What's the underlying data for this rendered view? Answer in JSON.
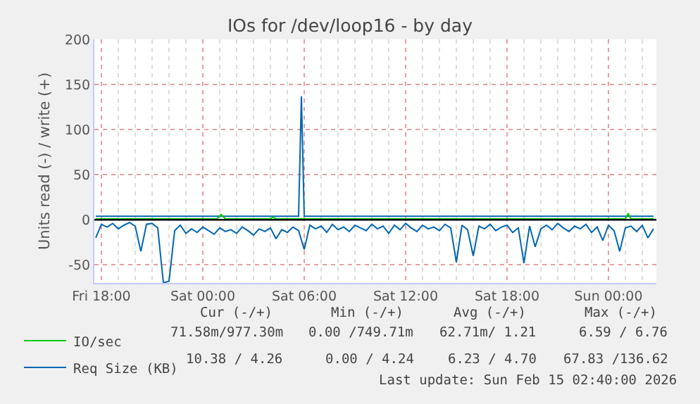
{
  "chart_data": {
    "type": "line",
    "title": "IOs for /dev/loop16 - by day",
    "ylabel": "Units read (-) / write (+)",
    "xlim": [
      "2026-02-13T17:35",
      "2026-02-15T02:50"
    ],
    "xticks": [
      {
        "value": "2026-02-13T18:00",
        "label": "Fri 18:00"
      },
      {
        "value": "2026-02-14T00:00",
        "label": "Sat 00:00"
      },
      {
        "value": "2026-02-14T06:00",
        "label": "Sat 06:00"
      },
      {
        "value": "2026-02-14T12:00",
        "label": "Sat 12:00"
      },
      {
        "value": "2026-02-14T18:00",
        "label": "Sat 18:00"
      },
      {
        "value": "2026-02-15T00:00",
        "label": "Sun 00:00"
      }
    ],
    "ylim": [
      -70,
      200
    ],
    "yticks": [
      -50,
      0,
      50,
      100,
      150,
      200
    ],
    "grid": true,
    "legend": "bottom left",
    "ref_lines": [
      {
        "axis": "y",
        "value": 0,
        "color": "#000000"
      }
    ],
    "series": [
      {
        "name": "IO/sec",
        "color": "#00cc00",
        "x": [
          "2026-02-13T17:40",
          "2026-02-14T00:50",
          "2026-02-14T01:05",
          "2026-02-14T01:20",
          "2026-02-14T04:00",
          "2026-02-14T04:10",
          "2026-02-14T04:20",
          "2026-02-15T01:00",
          "2026-02-15T01:10",
          "2026-02-15T01:20",
          "2026-02-15T02:40"
        ],
        "values": [
          1,
          1,
          6,
          1,
          1,
          3,
          1,
          1,
          7,
          1,
          1
        ]
      },
      {
        "name": "Req Size (KB)",
        "color": "#0066b3",
        "x": [
          "2026-02-13T17:40",
          "2026-02-13T18:00",
          "2026-02-13T18:20",
          "2026-02-13T18:40",
          "2026-02-13T19:00",
          "2026-02-13T19:20",
          "2026-02-13T19:40",
          "2026-02-13T20:00",
          "2026-02-13T20:20",
          "2026-02-13T20:40",
          "2026-02-13T21:00",
          "2026-02-13T21:20",
          "2026-02-13T21:40",
          "2026-02-13T22:00",
          "2026-02-13T22:20",
          "2026-02-13T22:40",
          "2026-02-13T23:00",
          "2026-02-13T23:20",
          "2026-02-13T23:40",
          "2026-02-14T00:00",
          "2026-02-14T00:20",
          "2026-02-14T00:40",
          "2026-02-14T01:00",
          "2026-02-14T01:20",
          "2026-02-14T01:40",
          "2026-02-14T02:00",
          "2026-02-14T02:20",
          "2026-02-14T02:40",
          "2026-02-14T03:00",
          "2026-02-14T03:20",
          "2026-02-14T03:40",
          "2026-02-14T04:00",
          "2026-02-14T04:20",
          "2026-02-14T04:40",
          "2026-02-14T05:00",
          "2026-02-14T05:20",
          "2026-02-14T05:40",
          "2026-02-14T06:00",
          "2026-02-14T06:20",
          "2026-02-14T06:40",
          "2026-02-14T07:00",
          "2026-02-14T07:20",
          "2026-02-14T07:40",
          "2026-02-14T08:00",
          "2026-02-14T08:20",
          "2026-02-14T08:40",
          "2026-02-14T09:00",
          "2026-02-14T09:20",
          "2026-02-14T09:40",
          "2026-02-14T10:00",
          "2026-02-14T10:20",
          "2026-02-14T10:40",
          "2026-02-14T11:00",
          "2026-02-14T11:20",
          "2026-02-14T11:40",
          "2026-02-14T12:00",
          "2026-02-14T12:20",
          "2026-02-14T12:40",
          "2026-02-14T13:00",
          "2026-02-14T13:20",
          "2026-02-14T13:40",
          "2026-02-14T14:00",
          "2026-02-14T14:20",
          "2026-02-14T14:40",
          "2026-02-14T15:00",
          "2026-02-14T15:20",
          "2026-02-14T15:40",
          "2026-02-14T16:00",
          "2026-02-14T16:20",
          "2026-02-14T16:40",
          "2026-02-14T17:00",
          "2026-02-14T17:20",
          "2026-02-14T17:40",
          "2026-02-14T18:00",
          "2026-02-14T18:20",
          "2026-02-14T18:40",
          "2026-02-14T19:00",
          "2026-02-14T19:20",
          "2026-02-14T19:40",
          "2026-02-14T20:00",
          "2026-02-14T20:20",
          "2026-02-14T20:40",
          "2026-02-14T21:00",
          "2026-02-14T21:20",
          "2026-02-14T21:40",
          "2026-02-14T22:00",
          "2026-02-14T22:20",
          "2026-02-14T22:40",
          "2026-02-14T23:00",
          "2026-02-14T23:20",
          "2026-02-14T23:40",
          "2026-02-15T00:00",
          "2026-02-15T00:20",
          "2026-02-15T00:40",
          "2026-02-15T01:00",
          "2026-02-15T01:20",
          "2026-02-15T01:40",
          "2026-02-15T02:00",
          "2026-02-15T02:20",
          "2026-02-15T02:40"
        ],
        "values": [
          -20,
          -5,
          -8,
          -4,
          -10,
          -6,
          -3,
          -7,
          -35,
          -5,
          -4,
          -9,
          -70,
          -68,
          -12,
          -6,
          -15,
          -10,
          -14,
          -8,
          -12,
          -16,
          -9,
          -13,
          -11,
          -15,
          -8,
          -12,
          -17,
          -10,
          -13,
          -9,
          -21,
          -11,
          -14,
          -8,
          -12,
          -33,
          -6,
          -10,
          -7,
          -14,
          -5,
          -11,
          -8,
          -13,
          -6,
          -9,
          -12,
          -5,
          -10,
          -7,
          -15,
          -6,
          -11,
          -4,
          -9,
          -13,
          -6,
          -10,
          -8,
          -12,
          -5,
          -9,
          -47,
          -6,
          -11,
          -40,
          -7,
          -10,
          -5,
          -12,
          -8,
          -6,
          -14,
          -9,
          -48,
          -7,
          -30,
          -10,
          -6,
          -11,
          -4,
          -9,
          -13,
          -7,
          -10,
          -5,
          -14,
          -8,
          -23,
          -6,
          -12,
          -35,
          -9,
          -7,
          -13,
          -6,
          -20,
          -10
        ]
      },
      {
        "color": "#0066b3",
        "x": [
          "2026-02-13T17:40",
          "2026-02-14T05:40",
          "2026-02-14T05:50",
          "2026-02-14T06:00",
          "2026-02-15T02:40"
        ],
        "values": [
          4,
          4,
          137,
          4,
          4
        ]
      }
    ],
    "annotations": [
      "Cur (-/+)",
      "Min (-/+)",
      "Avg (-/+)",
      "Max (-/+)",
      "71.58m/977.30m",
      "0.00 /749.71m",
      "62.71m/ 1.21",
      "6.59 / 6.76",
      "10.38 / 4.26",
      "0.00 / 4.24",
      "6.23 / 4.70",
      "67.83 /136.62",
      "Last update: Sun Feb 15 02:40:00 2026"
    ]
  }
}
